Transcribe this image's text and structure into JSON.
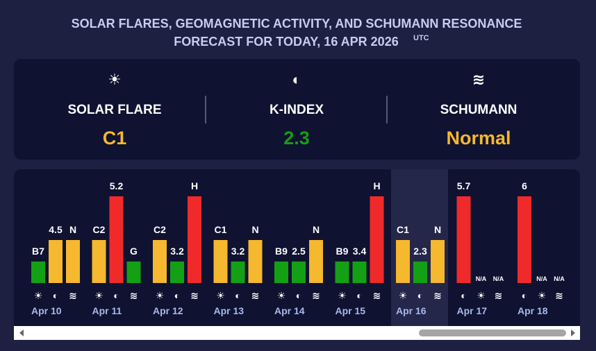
{
  "header": {
    "title_line1": "SOLAR FLARES, GEOMAGNETIC ACTIVITY, AND SCHUMANN RESONANCE",
    "title_line2": "FORECAST FOR TODAY, 16 APR 2026",
    "timezone": "UTC"
  },
  "summary": [
    {
      "icon": "☀",
      "label": "SOLAR FLARE",
      "value": "C1",
      "color": "#f5b82e"
    },
    {
      "icon": "◐",
      "label": "K-INDEX",
      "value": "2.3",
      "color": "#1a9a1a"
    },
    {
      "icon": "≋",
      "label": "SCHUMANN",
      "value": "Normal",
      "color": "#f5b82e"
    }
  ],
  "days": [
    {
      "date": "Apr 10",
      "bars": [
        {
          "label": "B7",
          "color": "#14a014",
          "icon": "☀"
        },
        {
          "label": "4.5",
          "color": "#f5b82e",
          "icon": "◐"
        },
        {
          "label": "N",
          "color": "#f5b82e",
          "icon": "≋"
        }
      ]
    },
    {
      "date": "Apr 11",
      "bars": [
        {
          "label": "C2",
          "color": "#f5b82e",
          "icon": "☀"
        },
        {
          "label": "5.2",
          "color": "#f02a2a",
          "icon": "◐"
        },
        {
          "label": "G",
          "color": "#14a014",
          "icon": "≋"
        }
      ]
    },
    {
      "date": "Apr 12",
      "bars": [
        {
          "label": "C2",
          "color": "#f5b82e",
          "icon": "☀"
        },
        {
          "label": "3.2",
          "color": "#14a014",
          "icon": "◐"
        },
        {
          "label": "H",
          "color": "#f02a2a",
          "icon": "≋"
        }
      ]
    },
    {
      "date": "Apr 13",
      "bars": [
        {
          "label": "C1",
          "color": "#f5b82e",
          "icon": "☀"
        },
        {
          "label": "3.2",
          "color": "#14a014",
          "icon": "◐"
        },
        {
          "label": "N",
          "color": "#f5b82e",
          "icon": "≋"
        }
      ]
    },
    {
      "date": "Apr 14",
      "bars": [
        {
          "label": "B9",
          "color": "#14a014",
          "icon": "☀"
        },
        {
          "label": "2.5",
          "color": "#14a014",
          "icon": "◐"
        },
        {
          "label": "N",
          "color": "#f5b82e",
          "icon": "≋"
        }
      ]
    },
    {
      "date": "Apr 15",
      "bars": [
        {
          "label": "B9",
          "color": "#14a014",
          "icon": "☀"
        },
        {
          "label": "3.4",
          "color": "#14a014",
          "icon": "◐"
        },
        {
          "label": "H",
          "color": "#f02a2a",
          "icon": "≋"
        }
      ]
    },
    {
      "date": "Apr 16",
      "today": true,
      "bars": [
        {
          "label": "C1",
          "color": "#f5b82e",
          "icon": "☀"
        },
        {
          "label": "2.3",
          "color": "#14a014",
          "icon": "◐"
        },
        {
          "label": "N",
          "color": "#f5b82e",
          "icon": "≋"
        }
      ]
    },
    {
      "date": "Apr 17",
      "bars": [
        {
          "label": "5.7",
          "color": "#f02a2a",
          "icon": "◐"
        },
        {
          "label": "N/A",
          "color": null,
          "icon": "☀"
        },
        {
          "label": "N/A",
          "color": null,
          "icon": "≋"
        }
      ]
    },
    {
      "date": "Apr 18",
      "bars": [
        {
          "label": "6",
          "color": "#f02a2a",
          "icon": "◐"
        },
        {
          "label": "N/A",
          "color": null,
          "icon": "☀"
        },
        {
          "label": "N/A",
          "color": null,
          "icon": "≋"
        }
      ]
    }
  ]
}
